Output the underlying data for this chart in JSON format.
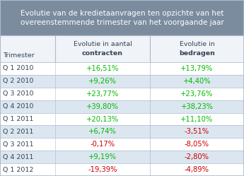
{
  "title_line1": "Evolutie van de kredietaanvragen ten opzichte van het",
  "title_line2": "overeenstemmende trimester van het voorgaande jaar",
  "col_header1_line1": "Evolutie in aantal",
  "col_header1_line2": "contracten",
  "col_header2_line1": "Evolutie in",
  "col_header2_line2": "bedragen",
  "row_label": "Trimester",
  "rows": [
    {
      "label": "Q 1 2010",
      "col1": "+16,51%",
      "col2": "+13,79%",
      "col1_pos": true,
      "col2_pos": true
    },
    {
      "label": "Q 2 2010",
      "col1": "+9,26%",
      "col2": "+4,40%",
      "col1_pos": true,
      "col2_pos": true
    },
    {
      "label": "Q 3 2010",
      "col1": "+23,77%",
      "col2": "+23,76%",
      "col1_pos": true,
      "col2_pos": true
    },
    {
      "label": "Q 4 2010",
      "col1": "+39,80%",
      "col2": "+38,23%",
      "col1_pos": true,
      "col2_pos": true
    },
    {
      "label": "Q 1 2011",
      "col1": "+20,13%",
      "col2": "+11,10%",
      "col1_pos": true,
      "col2_pos": true
    },
    {
      "label": "Q 2 2011",
      "col1": "+6,74%",
      "col2": "-3,51%",
      "col1_pos": true,
      "col2_pos": false
    },
    {
      "label": "Q 3 2011",
      "col1": "-0,17%",
      "col2": "-8,05%",
      "col1_pos": false,
      "col2_pos": false
    },
    {
      "label": "Q 4 2011",
      "col1": "+9,19%",
      "col2": "-2,80%",
      "col1_pos": true,
      "col2_pos": false
    },
    {
      "label": "Q 1 2012",
      "col1": "-19,39%",
      "col2": "-4,89%",
      "col1_pos": false,
      "col2_pos": false
    }
  ],
  "title_bg": "#7a8c9e",
  "title_fg": "#ffffff",
  "row_bg_white": "#ffffff",
  "row_bg_light": "#dce6f0",
  "positive_color": "#00bb00",
  "negative_color": "#cc0000",
  "label_color": "#334455",
  "header_text_color": "#334455",
  "border_color": "#aabbcc",
  "fig_bg": "#ffffff",
  "title_fontsize": 7.5,
  "header_fontsize": 6.8,
  "data_fontsize": 7.2,
  "label_fontsize": 6.8
}
